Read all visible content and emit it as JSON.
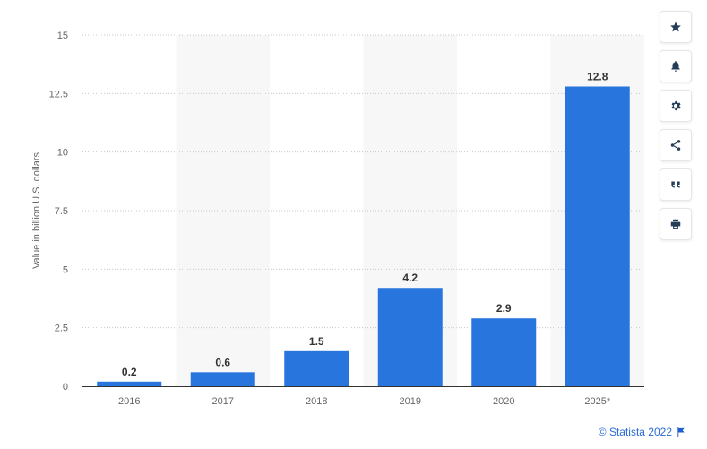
{
  "chart_data": {
    "type": "bar",
    "categories": [
      "2016",
      "2017",
      "2018",
      "2019",
      "2020",
      "2025*"
    ],
    "values": [
      0.2,
      0.6,
      1.5,
      4.2,
      2.9,
      12.8
    ],
    "value_labels": [
      "0.2",
      "0.6",
      "1.5",
      "4.2",
      "2.9",
      "12.8"
    ],
    "title": "",
    "xlabel": "",
    "ylabel": "Value in billion U.S. dollars",
    "ylim": [
      0,
      15
    ],
    "yticks": [
      "0",
      "2.5",
      "5",
      "7.5",
      "10",
      "12.5",
      "15"
    ],
    "grid": true,
    "bar_color": "#2876dd",
    "stripe_color": "#f7f7f7"
  },
  "toolbar": {
    "buttons": [
      {
        "icon": "star-icon"
      },
      {
        "icon": "bell-icon"
      },
      {
        "icon": "gear-icon"
      },
      {
        "icon": "share-icon"
      },
      {
        "icon": "quote-icon"
      },
      {
        "icon": "print-icon"
      }
    ]
  },
  "credit": {
    "text": "© Statista 2022",
    "color": "#2a6ad6"
  }
}
